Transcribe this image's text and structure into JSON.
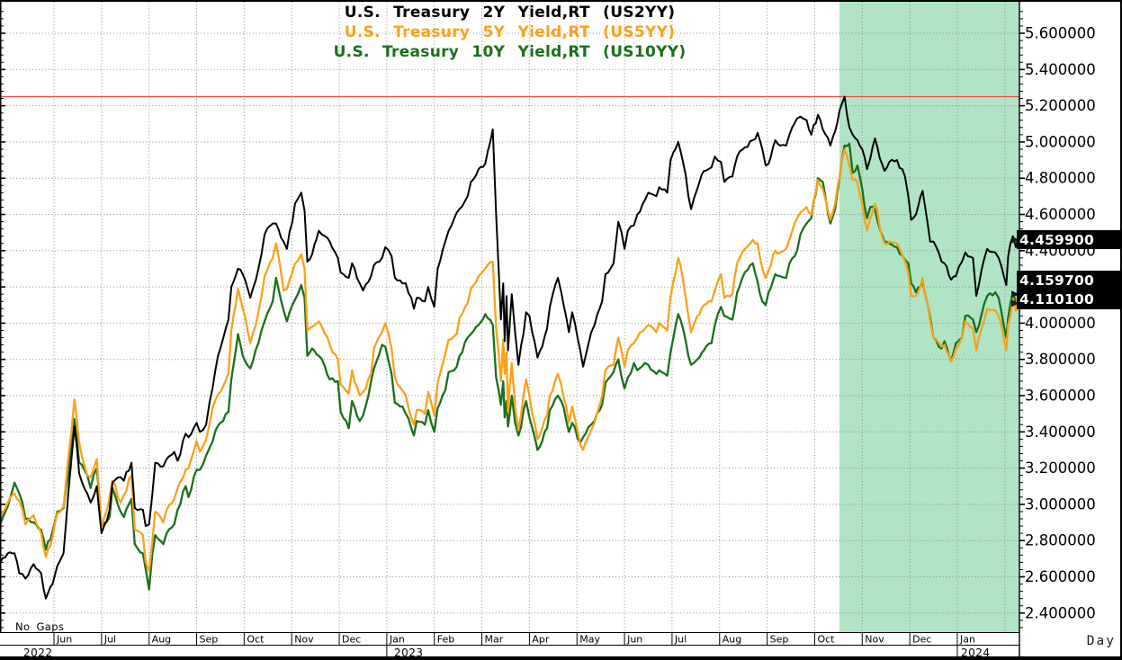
{
  "chart_data": {
    "type": "line",
    "title_lines": [
      {
        "text": "U.S. Treasury 2Y Yield,RT (US2YY)",
        "color": "#000000"
      },
      {
        "text": "U.S. Treasury 5Y Yield,RT (US5YY)",
        "color": "#f9a11b"
      },
      {
        "text": "U.S. Treasury 10Y Yield,RT (US10YY)",
        "color": "#1a701a"
      }
    ],
    "series": [
      {
        "name": "U.S. Treasury 2Y Yield,RT",
        "ticker": "US2YY",
        "color": "#000000",
        "last_label": "4.459900",
        "last_value": 4.4599
      },
      {
        "name": "U.S. Treasury 5Y Yield,RT",
        "ticker": "US5YY",
        "color": "#f9a11b",
        "last_label": "4.159700",
        "last_value": 4.1597
      },
      {
        "name": "U.S. Treasury 10Y Yield,RT",
        "ticker": "US10YY",
        "color": "#1a701a",
        "last_label": "4.110100",
        "last_value": 4.1101
      }
    ],
    "x_tick_labels": [
      "Jun",
      "Jul",
      "Aug",
      "Sep",
      "Oct",
      "Nov",
      "Dec",
      "Jan",
      "Feb",
      "Mar",
      "Apr",
      "May",
      "Jun",
      "Jul",
      "Aug",
      "Sep",
      "Oct",
      "Nov",
      "Dec",
      "Jan"
    ],
    "years": [
      {
        "label": "2022",
        "month_index": -1
      },
      {
        "label": "2023",
        "month_index": 7
      },
      {
        "label": "2024",
        "month_index": 19
      }
    ],
    "y_ticks": [
      "5.600000",
      "5.400000",
      "5.200000",
      "5.000000",
      "4.800000",
      "4.600000",
      "4.400000",
      "4.200000",
      "4.000000",
      "3.800000",
      "3.600000",
      "3.400000",
      "3.200000",
      "3.000000",
      "2.800000",
      "2.600000",
      "2.400000"
    ],
    "ylim": [
      2.28,
      5.78
    ],
    "grid": true,
    "legend_position": "top-center",
    "interval_label": "Day",
    "footnote": "No Gaps",
    "red_line_level": 5.25,
    "red_line_color": "#ef4a3f",
    "highlight_region": {
      "t_start": 17.52,
      "t_end": 21.32,
      "color": "#b0e4c5"
    },
    "rows_format": [
      "t_months_since_2022_05_01",
      "us2yy",
      "us5yy",
      "us10yy"
    ],
    "rows": [
      [
        -0.13,
        2.68,
        2.92,
        2.89
      ],
      [
        0.03,
        2.73,
        3.01,
        2.99
      ],
      [
        0.17,
        2.73,
        3.06,
        3.12
      ],
      [
        0.27,
        2.62,
        3.02,
        3.06
      ],
      [
        0.4,
        2.59,
        2.89,
        2.92
      ],
      [
        0.57,
        2.67,
        2.94,
        2.9
      ],
      [
        0.73,
        2.62,
        2.84,
        2.86
      ],
      [
        0.83,
        2.48,
        2.71,
        2.75
      ],
      [
        0.97,
        2.56,
        2.82,
        2.85
      ],
      [
        1.07,
        2.66,
        2.95,
        2.96
      ],
      [
        1.2,
        2.73,
        2.99,
        2.98
      ],
      [
        1.3,
        3.06,
        3.26,
        3.16
      ],
      [
        1.43,
        3.43,
        3.58,
        3.47
      ],
      [
        1.53,
        3.17,
        3.34,
        3.23
      ],
      [
        1.7,
        3.06,
        3.16,
        3.16
      ],
      [
        1.77,
        3.01,
        3.15,
        3.09
      ],
      [
        1.9,
        3.1,
        3.25,
        3.2
      ],
      [
        2.0,
        2.84,
        2.88,
        2.88
      ],
      [
        2.17,
        2.97,
        3.04,
        2.93
      ],
      [
        2.23,
        3.12,
        3.13,
        3.09
      ],
      [
        2.4,
        3.15,
        3.01,
        2.96
      ],
      [
        2.47,
        3.13,
        3.05,
        2.93
      ],
      [
        2.63,
        3.23,
        3.16,
        3.03
      ],
      [
        2.7,
        2.98,
        2.86,
        2.78
      ],
      [
        2.87,
        2.97,
        2.83,
        2.73
      ],
      [
        2.93,
        2.88,
        2.68,
        2.64
      ],
      [
        3.0,
        2.89,
        2.63,
        2.53
      ],
      [
        3.07,
        3.06,
        2.8,
        2.73
      ],
      [
        3.13,
        3.23,
        2.96,
        2.83
      ],
      [
        3.3,
        3.21,
        2.9,
        2.78
      ],
      [
        3.37,
        3.25,
        2.97,
        2.84
      ],
      [
        3.53,
        3.29,
        3.03,
        2.89
      ],
      [
        3.6,
        3.24,
        3.09,
        2.97
      ],
      [
        3.77,
        3.39,
        3.19,
        3.1
      ],
      [
        3.83,
        3.37,
        3.2,
        3.04
      ],
      [
        4.0,
        3.45,
        3.35,
        3.19
      ],
      [
        4.07,
        3.4,
        3.29,
        3.19
      ],
      [
        4.2,
        3.44,
        3.36,
        3.27
      ],
      [
        4.27,
        3.56,
        3.44,
        3.31
      ],
      [
        4.4,
        3.75,
        3.58,
        3.41
      ],
      [
        4.5,
        3.86,
        3.62,
        3.45
      ],
      [
        4.67,
        4.02,
        3.72,
        3.51
      ],
      [
        4.73,
        4.2,
        3.96,
        3.69
      ],
      [
        4.87,
        4.3,
        4.19,
        3.94
      ],
      [
        4.97,
        4.27,
        4.08,
        3.82
      ],
      [
        5.13,
        4.14,
        3.89,
        3.75
      ],
      [
        5.3,
        4.3,
        4.06,
        3.89
      ],
      [
        5.43,
        4.49,
        4.26,
        4.01
      ],
      [
        5.6,
        4.55,
        4.36,
        4.12
      ],
      [
        5.67,
        4.55,
        4.44,
        4.25
      ],
      [
        5.83,
        4.45,
        4.18,
        4.07
      ],
      [
        5.9,
        4.41,
        4.19,
        4.01
      ],
      [
        6.07,
        4.66,
        4.33,
        4.13
      ],
      [
        6.2,
        4.72,
        4.38,
        4.21
      ],
      [
        6.27,
        4.62,
        4.3,
        4.14
      ],
      [
        6.33,
        4.34,
        3.96,
        3.82
      ],
      [
        6.43,
        4.38,
        3.98,
        3.86
      ],
      [
        6.57,
        4.51,
        4.01,
        3.82
      ],
      [
        6.7,
        4.48,
        3.94,
        3.76
      ],
      [
        6.8,
        4.45,
        3.88,
        3.69
      ],
      [
        6.97,
        4.36,
        3.8,
        3.68
      ],
      [
        7.03,
        4.28,
        3.66,
        3.51
      ],
      [
        7.2,
        4.25,
        3.61,
        3.42
      ],
      [
        7.27,
        4.33,
        3.74,
        3.57
      ],
      [
        7.43,
        4.22,
        3.6,
        3.46
      ],
      [
        7.5,
        4.18,
        3.62,
        3.49
      ],
      [
        7.67,
        4.26,
        3.72,
        3.68
      ],
      [
        7.73,
        4.32,
        3.86,
        3.75
      ],
      [
        7.9,
        4.36,
        3.95,
        3.88
      ],
      [
        7.97,
        4.42,
        4.0,
        3.87
      ],
      [
        8.1,
        4.37,
        3.86,
        3.72
      ],
      [
        8.17,
        4.25,
        3.7,
        3.56
      ],
      [
        8.33,
        4.22,
        3.63,
        3.54
      ],
      [
        8.4,
        4.22,
        3.6,
        3.5
      ],
      [
        8.57,
        4.08,
        3.44,
        3.38
      ],
      [
        8.63,
        4.14,
        3.52,
        3.46
      ],
      [
        8.8,
        4.12,
        3.5,
        3.44
      ],
      [
        8.87,
        4.2,
        3.62,
        3.52
      ],
      [
        9.0,
        4.09,
        3.49,
        3.4
      ],
      [
        9.07,
        4.3,
        3.67,
        3.53
      ],
      [
        9.23,
        4.45,
        3.83,
        3.63
      ],
      [
        9.3,
        4.51,
        3.91,
        3.73
      ],
      [
        9.47,
        4.61,
        3.94,
        3.76
      ],
      [
        9.53,
        4.63,
        4.03,
        3.82
      ],
      [
        9.7,
        4.7,
        4.11,
        3.92
      ],
      [
        9.77,
        4.78,
        4.19,
        3.94
      ],
      [
        9.93,
        4.85,
        4.26,
        3.99
      ],
      [
        10.07,
        4.88,
        4.3,
        4.05
      ],
      [
        10.23,
        5.07,
        4.34,
        3.99
      ],
      [
        10.3,
        4.6,
        3.97,
        3.7
      ],
      [
        10.4,
        4.02,
        3.68,
        3.55
      ],
      [
        10.45,
        4.22,
        3.91,
        3.68
      ],
      [
        10.48,
        3.9,
        3.72,
        3.48
      ],
      [
        10.52,
        4.15,
        3.84,
        3.57
      ],
      [
        10.55,
        3.85,
        3.51,
        3.43
      ],
      [
        10.63,
        4.16,
        3.78,
        3.6
      ],
      [
        10.7,
        3.95,
        3.54,
        3.45
      ],
      [
        10.77,
        3.77,
        3.41,
        3.38
      ],
      [
        10.93,
        4.06,
        3.69,
        3.57
      ],
      [
        11.0,
        4.04,
        3.6,
        3.48
      ],
      [
        11.17,
        3.81,
        3.36,
        3.3
      ],
      [
        11.37,
        3.97,
        3.49,
        3.42
      ],
      [
        11.43,
        4.09,
        3.6,
        3.52
      ],
      [
        11.6,
        4.25,
        3.72,
        3.6
      ],
      [
        11.67,
        4.17,
        3.66,
        3.57
      ],
      [
        11.83,
        3.95,
        3.45,
        3.4
      ],
      [
        11.9,
        4.06,
        3.54,
        3.45
      ],
      [
        12.07,
        3.85,
        3.33,
        3.34
      ],
      [
        12.13,
        3.76,
        3.3,
        3.37
      ],
      [
        12.3,
        3.95,
        3.41,
        3.44
      ],
      [
        12.37,
        3.99,
        3.45,
        3.46
      ],
      [
        12.53,
        4.12,
        3.6,
        3.55
      ],
      [
        12.6,
        4.27,
        3.74,
        3.67
      ],
      [
        12.77,
        4.33,
        3.77,
        3.73
      ],
      [
        12.87,
        4.56,
        3.92,
        3.8
      ],
      [
        13.0,
        4.41,
        3.76,
        3.64
      ],
      [
        13.07,
        4.51,
        3.85,
        3.7
      ],
      [
        13.2,
        4.54,
        3.89,
        3.78
      ],
      [
        13.27,
        4.6,
        3.92,
        3.74
      ],
      [
        13.43,
        4.68,
        3.97,
        3.78
      ],
      [
        13.5,
        4.72,
        3.99,
        3.77
      ],
      [
        13.67,
        4.7,
        3.95,
        3.72
      ],
      [
        13.73,
        4.75,
        4.0,
        3.74
      ],
      [
        13.9,
        4.72,
        3.96,
        3.71
      ],
      [
        13.97,
        4.9,
        4.15,
        3.84
      ],
      [
        14.13,
        5.0,
        4.36,
        4.05
      ],
      [
        14.23,
        4.89,
        4.24,
        3.97
      ],
      [
        14.4,
        4.63,
        3.95,
        3.77
      ],
      [
        14.53,
        4.74,
        4.04,
        3.8
      ],
      [
        14.67,
        4.84,
        4.1,
        3.85
      ],
      [
        14.83,
        4.86,
        4.12,
        3.89
      ],
      [
        14.9,
        4.92,
        4.18,
        3.99
      ],
      [
        15.03,
        4.89,
        4.27,
        4.09
      ],
      [
        15.1,
        4.78,
        4.14,
        4.04
      ],
      [
        15.27,
        4.81,
        4.16,
        4.02
      ],
      [
        15.37,
        4.92,
        4.33,
        4.17
      ],
      [
        15.53,
        4.97,
        4.41,
        4.28
      ],
      [
        15.7,
        5.01,
        4.46,
        4.33
      ],
      [
        15.8,
        5.05,
        4.44,
        4.23
      ],
      [
        15.9,
        4.96,
        4.3,
        4.12
      ],
      [
        15.97,
        4.87,
        4.25,
        4.1
      ],
      [
        16.03,
        4.88,
        4.29,
        4.17
      ],
      [
        16.17,
        5.01,
        4.4,
        4.27
      ],
      [
        16.27,
        4.98,
        4.39,
        4.26
      ],
      [
        16.4,
        4.98,
        4.41,
        4.25
      ],
      [
        16.47,
        5.04,
        4.46,
        4.33
      ],
      [
        16.63,
        5.13,
        4.58,
        4.4
      ],
      [
        16.7,
        5.14,
        4.61,
        4.49
      ],
      [
        16.83,
        5.12,
        4.64,
        4.55
      ],
      [
        16.93,
        5.04,
        4.6,
        4.58
      ],
      [
        17.07,
        5.15,
        4.79,
        4.8
      ],
      [
        17.17,
        5.07,
        4.74,
        4.78
      ],
      [
        17.33,
        4.98,
        4.57,
        4.55
      ],
      [
        17.43,
        5.06,
        4.66,
        4.63
      ],
      [
        17.57,
        5.21,
        4.9,
        4.9
      ],
      [
        17.63,
        5.25,
        4.96,
        4.98
      ],
      [
        17.73,
        5.08,
        4.87,
        4.99
      ],
      [
        17.8,
        5.04,
        4.79,
        4.83
      ],
      [
        17.9,
        5.01,
        4.78,
        4.87
      ],
      [
        18.0,
        4.96,
        4.66,
        4.74
      ],
      [
        18.1,
        4.85,
        4.51,
        4.58
      ],
      [
        18.17,
        4.91,
        4.58,
        4.64
      ],
      [
        18.27,
        5.02,
        4.66,
        4.63
      ],
      [
        18.37,
        4.91,
        4.53,
        4.52
      ],
      [
        18.47,
        4.84,
        4.44,
        4.45
      ],
      [
        18.57,
        4.89,
        4.45,
        4.44
      ],
      [
        18.73,
        4.9,
        4.44,
        4.42
      ],
      [
        18.9,
        4.81,
        4.34,
        4.35
      ],
      [
        18.97,
        4.7,
        4.28,
        4.33
      ],
      [
        19.03,
        4.57,
        4.15,
        4.22
      ],
      [
        19.13,
        4.6,
        4.15,
        4.17
      ],
      [
        19.27,
        4.73,
        4.25,
        4.23
      ],
      [
        19.43,
        4.45,
        4.01,
        4.03
      ],
      [
        19.5,
        4.45,
        3.92,
        3.92
      ],
      [
        19.67,
        4.34,
        3.87,
        3.86
      ],
      [
        19.73,
        4.33,
        3.88,
        3.9
      ],
      [
        19.87,
        4.24,
        3.79,
        3.79
      ],
      [
        19.97,
        4.26,
        3.86,
        3.89
      ],
      [
        20.1,
        4.34,
        3.92,
        3.92
      ],
      [
        20.17,
        4.39,
        4.01,
        4.04
      ],
      [
        20.33,
        4.36,
        3.97,
        4.02
      ],
      [
        20.4,
        4.15,
        3.85,
        3.95
      ],
      [
        20.57,
        4.36,
        4.02,
        4.11
      ],
      [
        20.63,
        4.41,
        4.08,
        4.15
      ],
      [
        20.8,
        4.39,
        4.07,
        4.17
      ],
      [
        20.87,
        4.36,
        4.04,
        4.14
      ],
      [
        21.03,
        4.21,
        3.85,
        3.92
      ],
      [
        21.07,
        4.37,
        3.99,
        4.03
      ],
      [
        21.17,
        4.48,
        4.13,
        4.17
      ],
      [
        21.23,
        4.42,
        4.07,
        4.11
      ],
      [
        21.27,
        4.4599,
        4.1597,
        4.1101
      ]
    ]
  }
}
